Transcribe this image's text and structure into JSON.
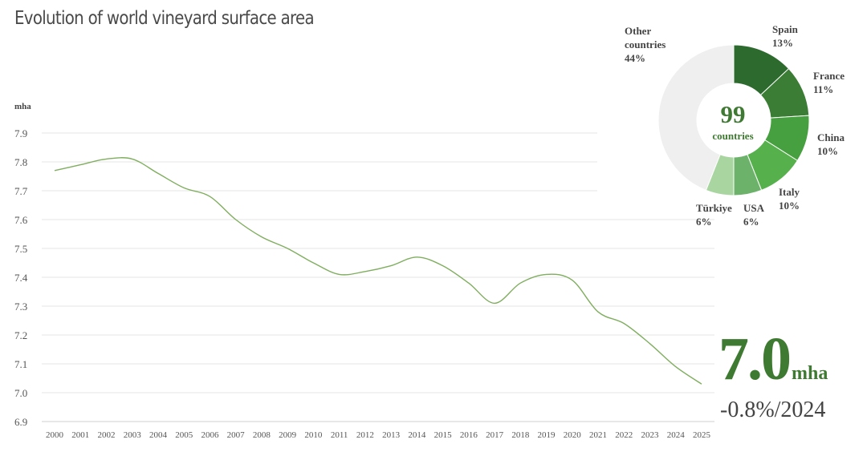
{
  "title": "Evolution of world vineyard surface area",
  "chart_data": [
    {
      "type": "line",
      "ylabel": "mha",
      "ylim": [
        6.9,
        7.9
      ],
      "yticks": [
        "7.9",
        "7.8",
        "7.7",
        "7.6",
        "7.5",
        "7.4",
        "7.3",
        "7.2",
        "7.1",
        "7.0",
        "6.9"
      ],
      "x": [
        "2000",
        "2001",
        "2002",
        "2003",
        "2004",
        "2005",
        "2006",
        "2007",
        "2008",
        "2009",
        "2010",
        "2011",
        "2012",
        "2013",
        "2014",
        "2015",
        "2016",
        "2017",
        "2018",
        "2019",
        "2020",
        "2021",
        "2022",
        "2023",
        "2024",
        "2025"
      ],
      "series": [
        {
          "values": [
            7.77,
            7.79,
            7.81,
            7.81,
            7.76,
            7.71,
            7.68,
            7.6,
            7.54,
            7.5,
            7.45,
            7.41,
            7.42,
            7.44,
            7.47,
            7.44,
            7.38,
            7.31,
            7.38,
            7.41,
            7.39,
            7.28,
            7.24,
            7.17,
            7.09,
            7.03
          ]
        }
      ],
      "grid": true,
      "color": "#7fae5e"
    },
    {
      "type": "pie",
      "variant": "donut",
      "center_value": "99",
      "center_label": "countries",
      "slices": [
        {
          "label": "Spain",
          "value": 13,
          "value_label": "13%",
          "color": "#2d6a2e"
        },
        {
          "label": "France",
          "value": 11,
          "value_label": "11%",
          "color": "#3b7d34"
        },
        {
          "label": "China",
          "value": 10,
          "value_label": "10%",
          "color": "#46a03f"
        },
        {
          "label": "Italy",
          "value": 10,
          "value_label": "10%",
          "color": "#56b04c"
        },
        {
          "label": "USA",
          "value": 6,
          "value_label": "6%",
          "color": "#6cb26a"
        },
        {
          "label": "Türkiye",
          "value": 6,
          "value_label": "6%",
          "color": "#a9d5a1"
        },
        {
          "label": "Other countries",
          "value": 44,
          "value_label": "44%",
          "color": "#efefef"
        }
      ]
    }
  ],
  "kpi": {
    "value": "7.0",
    "unit": "mha",
    "change": "-0.8%/2024"
  },
  "colors": {
    "accent": "#3f7a32",
    "line": "#7fae5e",
    "grid": "#e4e4e4"
  }
}
